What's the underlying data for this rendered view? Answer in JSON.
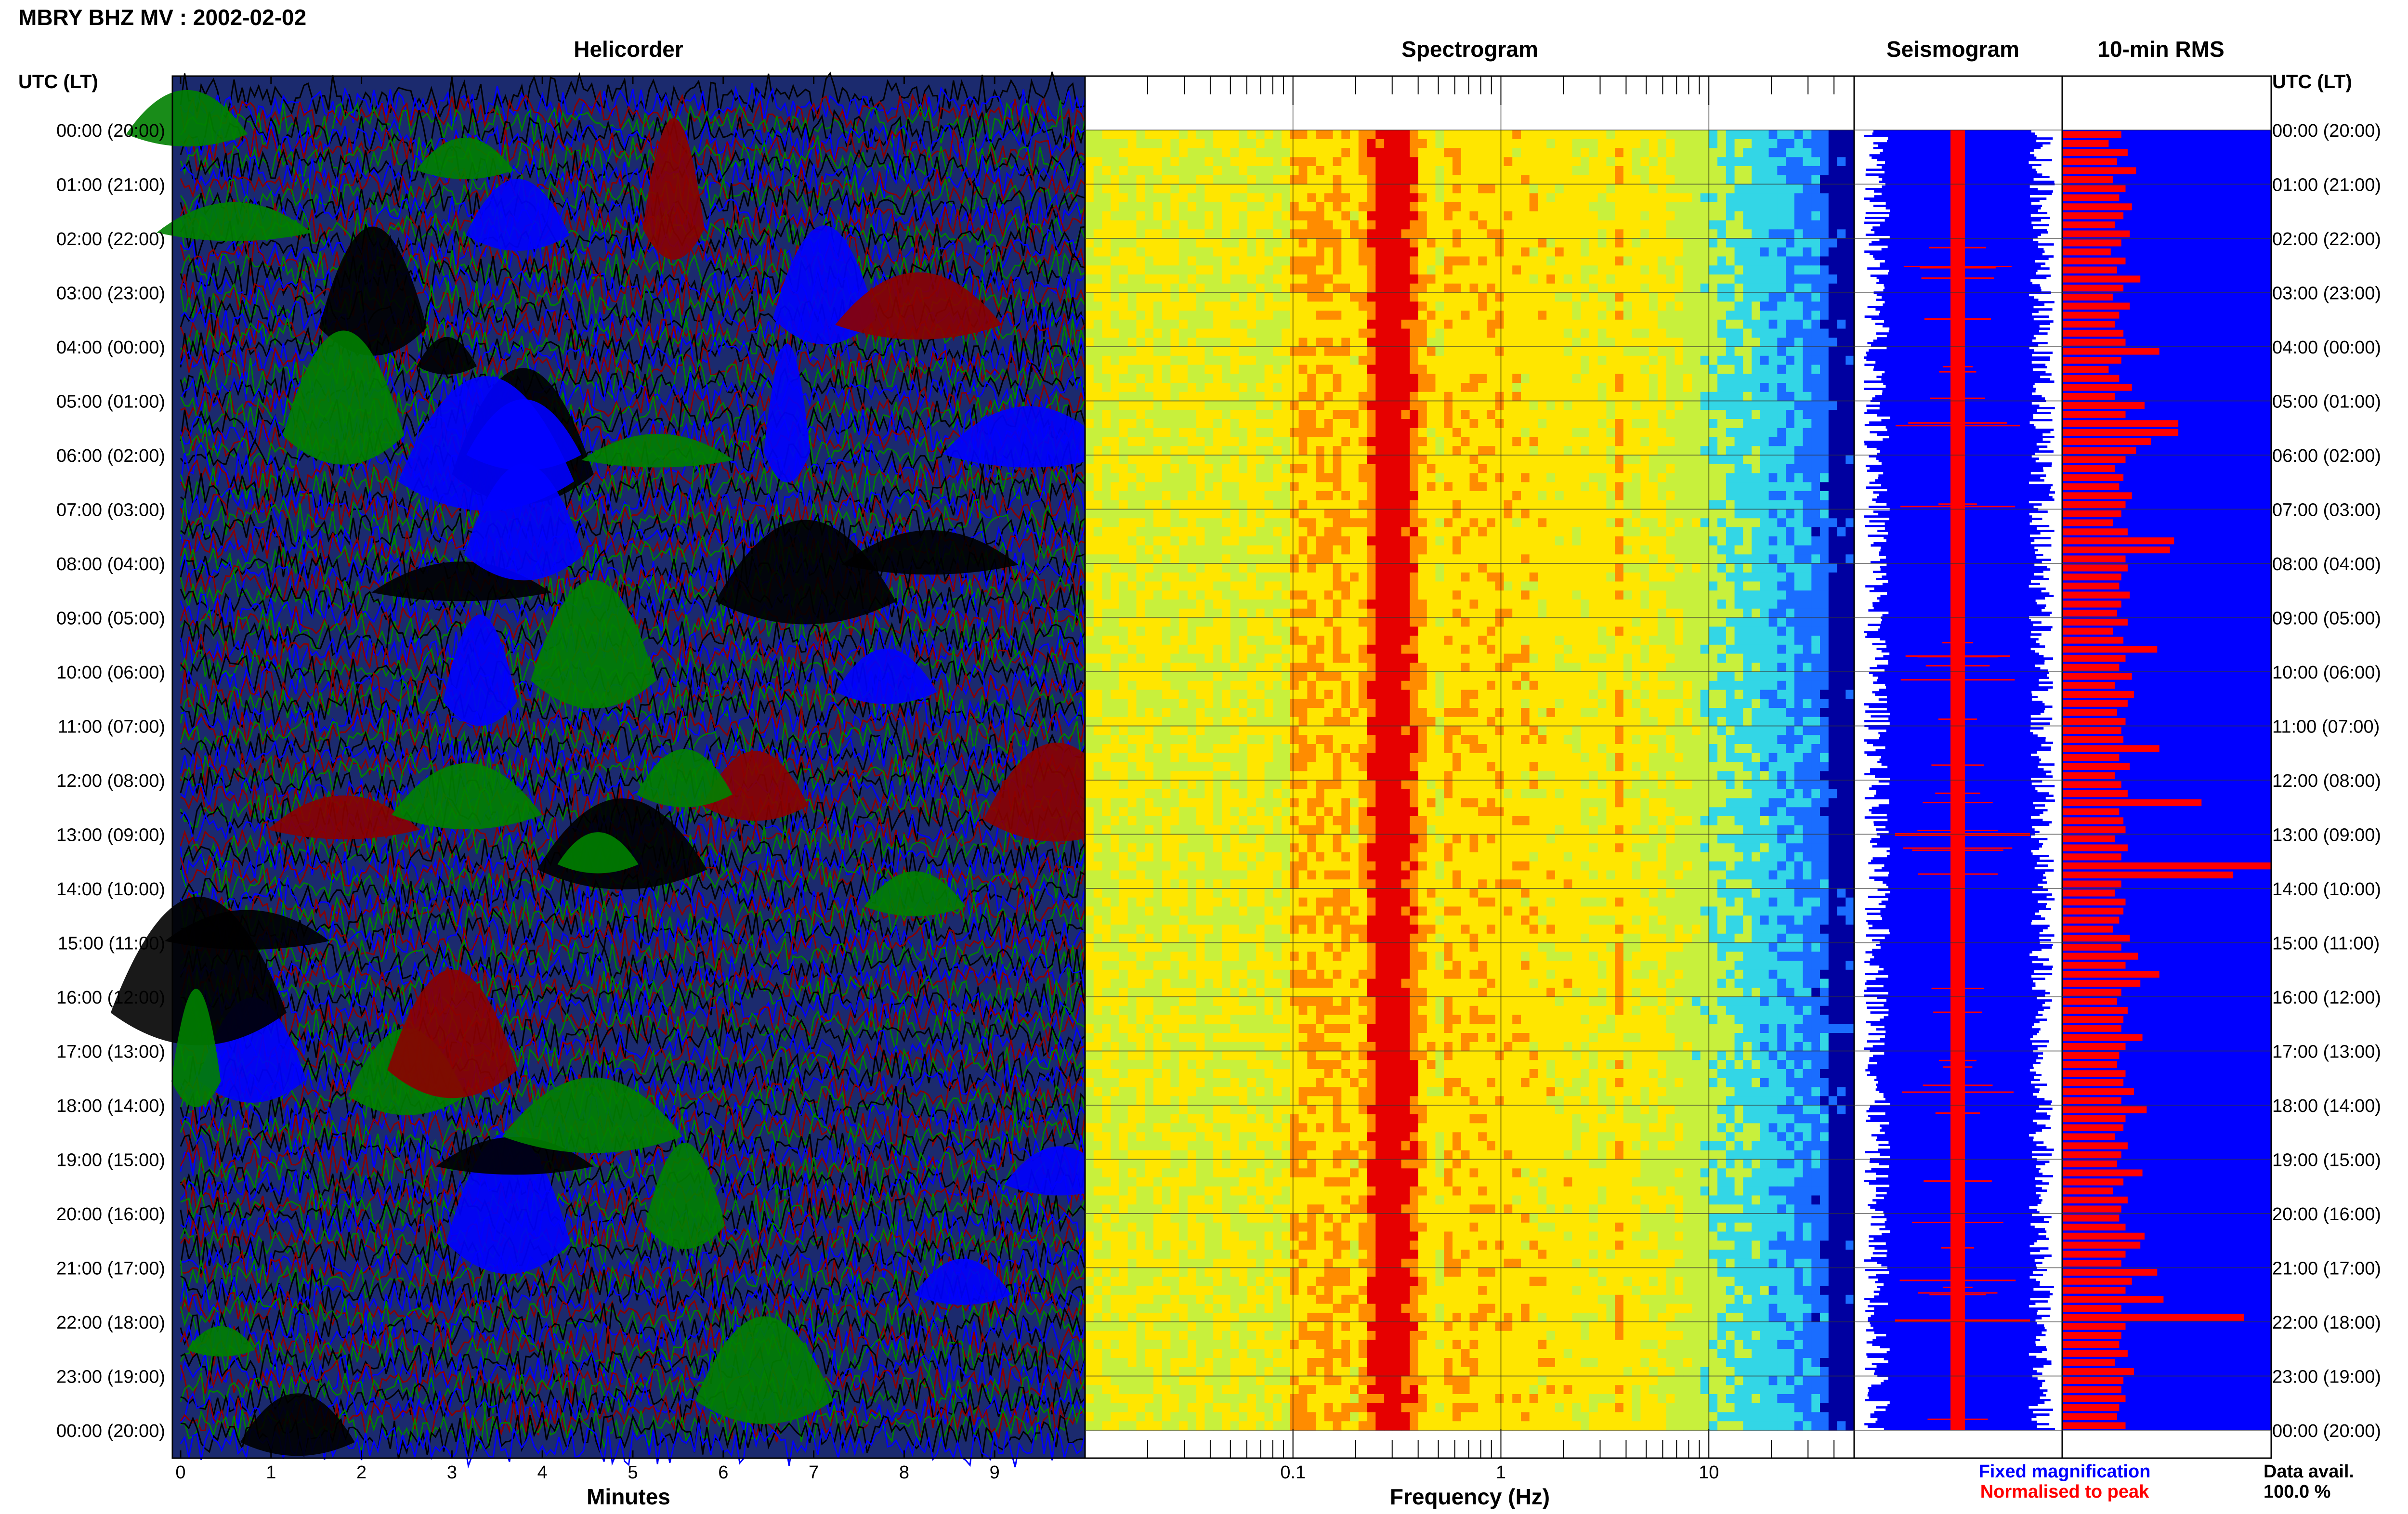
{
  "header": {
    "title": "MBRY BHZ MV : 2002-02-02",
    "time_axis_label": "UTC (LT)"
  },
  "panels": {
    "helicorder": "Helicorder",
    "spectrogram": "Spectrogram",
    "seismogram": "Seismogram",
    "rms": "10-min RMS"
  },
  "legend": {
    "fixed": "Fixed magnification",
    "normalised": "Normalised to peak",
    "colors": {
      "fixed": "#0000ff",
      "normalised": "#ff0000"
    }
  },
  "availability": {
    "label": "Data avail.",
    "value": "100.0 %"
  },
  "chart_data": [
    {
      "type": "heatmap",
      "title": "Helicorder",
      "xlabel": "Minutes",
      "ylabel": "UTC (LT)",
      "x_ticks": [
        0,
        1,
        2,
        3,
        4,
        5,
        6,
        7,
        8,
        9
      ],
      "xlim": [
        0,
        10
      ],
      "trace_colors": [
        "#000000",
        "#0000ff",
        "#8b0000",
        "#008000"
      ],
      "hours": [
        "00:00 (20:00)",
        "01:00 (21:00)",
        "02:00 (22:00)",
        "03:00 (23:00)",
        "04:00 (00:00)",
        "05:00 (01:00)",
        "06:00 (02:00)",
        "07:00 (03:00)",
        "08:00 (04:00)",
        "09:00 (05:00)",
        "10:00 (06:00)",
        "11:00 (07:00)",
        "12:00 (08:00)",
        "13:00 (09:00)",
        "14:00 (10:00)",
        "15:00 (11:00)",
        "16:00 (12:00)",
        "17:00 (13:00)",
        "18:00 (14:00)",
        "19:00 (15:00)",
        "20:00 (16:00)",
        "21:00 (17:00)",
        "22:00 (18:00)",
        "23:00 (19:00)",
        "00:00 (20:00)"
      ]
    },
    {
      "type": "heatmap",
      "title": "Spectrogram",
      "xlabel": "Frequency (Hz)",
      "x_scale": "log",
      "xlim": [
        0.01,
        50
      ],
      "x_ticks": [
        {
          "value": 0.1,
          "label": "0.1"
        },
        {
          "value": 1,
          "label": "1"
        },
        {
          "value": 10,
          "label": "10"
        }
      ],
      "rows": 144,
      "peak_band_hz": [
        0.2,
        0.5
      ],
      "secondary_band_hz": [
        3,
        4.5
      ]
    },
    {
      "type": "area",
      "title": "Seismogram",
      "series": [
        {
          "name": "Fixed magnification"
        },
        {
          "name": "Normalised to peak"
        }
      ]
    },
    {
      "type": "bar",
      "title": "10-min RMS",
      "orientation": "horizontal",
      "interval_minutes": 10,
      "values": [
        0.28,
        0.22,
        0.31,
        0.26,
        0.35,
        0.24,
        0.3,
        0.27,
        0.33,
        0.29,
        0.25,
        0.32,
        0.28,
        0.23,
        0.3,
        0.26,
        0.37,
        0.29,
        0.24,
        0.32,
        0.27,
        0.25,
        0.29,
        0.3,
        0.46,
        0.28,
        0.22,
        0.27,
        0.33,
        0.25,
        0.39,
        0.3,
        0.55,
        0.55,
        0.42,
        0.35,
        0.3,
        0.25,
        0.29,
        0.27,
        0.33,
        0.3,
        0.28,
        0.24,
        0.31,
        0.53,
        0.51,
        0.3,
        0.31,
        0.28,
        0.27,
        0.32,
        0.28,
        0.26,
        0.31,
        0.24,
        0.29,
        0.45,
        0.3,
        0.27,
        0.33,
        0.25,
        0.34,
        0.31,
        0.26,
        0.3,
        0.28,
        0.29,
        0.46,
        0.27,
        0.32,
        0.25,
        0.28,
        0.31,
        0.66,
        0.27,
        0.29,
        0.3,
        0.25,
        0.31,
        0.28,
        0.99,
        0.81,
        0.28,
        0.25,
        0.3,
        0.29,
        0.27,
        0.24,
        0.32,
        0.28,
        0.36,
        0.3,
        0.46,
        0.37,
        0.28,
        0.26,
        0.31,
        0.29,
        0.28,
        0.38,
        0.3,
        0.27,
        0.26,
        0.3,
        0.29,
        0.34,
        0.28,
        0.4,
        0.3,
        0.29,
        0.25,
        0.31,
        0.28,
        0.26,
        0.38,
        0.29,
        0.24,
        0.31,
        0.28,
        0.27,
        0.3,
        0.39,
        0.37,
        0.3,
        0.28,
        0.45,
        0.33,
        0.3,
        0.48,
        0.28,
        0.86,
        0.3,
        0.28,
        0.27,
        0.31,
        0.25,
        0.34,
        0.29,
        0.28,
        0.3,
        0.27,
        0.26,
        0.3
      ]
    }
  ]
}
